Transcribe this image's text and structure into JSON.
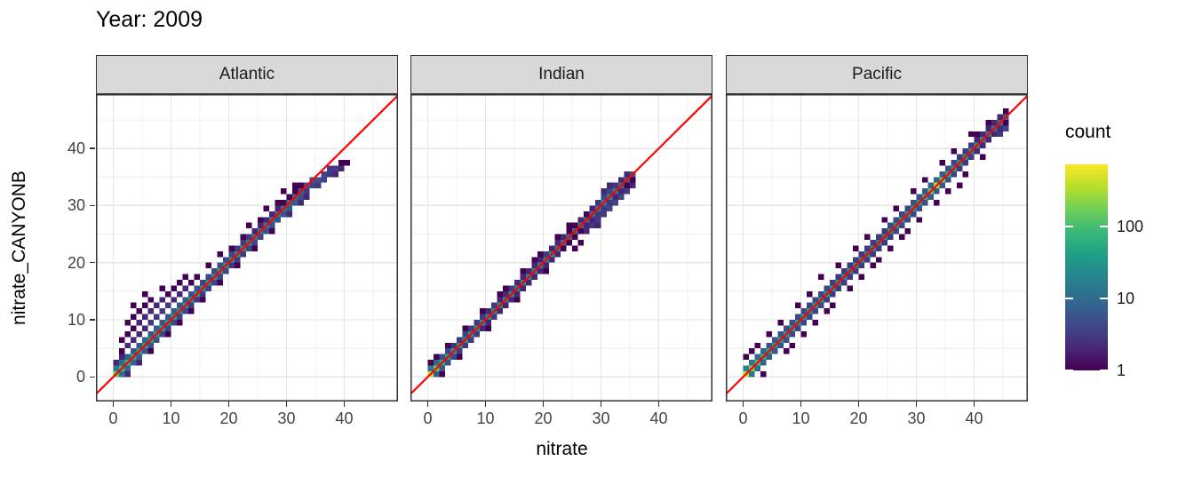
{
  "title": "Year: 2009",
  "axis_x_label": "nitrate",
  "axis_y_label": "nitrate_CANYONB",
  "legend": {
    "title": "count",
    "tick_values": [
      1,
      10,
      100
    ],
    "max_count": 730
  },
  "colors": {
    "viridis": [
      "#440154",
      "#482878",
      "#3e4a89",
      "#31688e",
      "#26828e",
      "#1f9e89",
      "#35b779",
      "#6ece58",
      "#b5de2b",
      "#fde725"
    ],
    "identity_line": "#ff0000",
    "strip_bg": "#d9d9d9",
    "panel_border": "#333333",
    "panel_bg": "#ffffff",
    "grid_major": "#e6e6e6",
    "grid_minor": "#f1f1f1",
    "tick_label": "#444444"
  },
  "chart_data": {
    "type": "heatmap",
    "geom": "bin2d",
    "binwidth": 1,
    "title": "Year: 2009",
    "xlabel": "nitrate",
    "ylabel": "nitrate_CANYONB",
    "legend_title": "count",
    "legend_scale": "log10",
    "x": {
      "min": -3,
      "max": 49.3,
      "ticks": [
        0,
        10,
        20,
        30,
        40
      ],
      "minor": [
        5,
        15,
        25,
        35,
        45
      ]
    },
    "y": {
      "min": -4.3,
      "max": 49.5,
      "ticks": [
        0,
        10,
        20,
        30,
        40
      ],
      "minor": [
        5,
        15,
        25,
        35,
        45
      ]
    },
    "identity_line": true,
    "facets": [
      {
        "label": "Atlantic",
        "diag": [
          150,
          80,
          60,
          50,
          45,
          42,
          40,
          40,
          38,
          36,
          35,
          34,
          32,
          32,
          30,
          30,
          32,
          32,
          34,
          32,
          30,
          28,
          25,
          22,
          20,
          20,
          18,
          16,
          14,
          12,
          12,
          10,
          8,
          6,
          5
        ],
        "above": [
          15,
          10,
          8,
          6,
          6,
          8,
          6,
          7,
          6,
          6,
          7,
          6,
          6,
          5,
          5,
          4,
          4,
          5,
          5,
          4,
          4,
          3,
          3,
          3,
          2,
          2,
          2,
          2,
          2,
          1,
          1,
          1,
          1,
          0,
          0
        ],
        "below": [
          0,
          12,
          9,
          8,
          7,
          6,
          5,
          5,
          4,
          4,
          4,
          4,
          4,
          3,
          3,
          3,
          4,
          4,
          4,
          4,
          3,
          3,
          3,
          4,
          4,
          4,
          5,
          5,
          5,
          6,
          6,
          6,
          5,
          5,
          4
        ],
        "extras": [
          [
            0,
            2,
            2
          ],
          [
            1,
            3,
            2
          ],
          [
            1,
            4,
            1
          ],
          [
            2,
            5,
            2
          ],
          [
            1,
            6,
            1
          ],
          [
            3,
            6,
            2
          ],
          [
            2,
            7,
            1
          ],
          [
            4,
            7,
            2
          ],
          [
            3,
            8,
            1
          ],
          [
            5,
            8,
            2
          ],
          [
            2,
            9,
            1
          ],
          [
            4,
            9,
            2
          ],
          [
            6,
            9,
            3
          ],
          [
            3,
            10,
            1
          ],
          [
            5,
            10,
            2
          ],
          [
            7,
            10,
            3
          ],
          [
            4,
            11,
            1
          ],
          [
            6,
            11,
            2
          ],
          [
            8,
            11,
            3
          ],
          [
            5,
            12,
            1
          ],
          [
            7,
            12,
            2
          ],
          [
            9,
            12,
            3
          ],
          [
            3,
            12,
            1
          ],
          [
            6,
            13,
            1
          ],
          [
            8,
            13,
            2
          ],
          [
            10,
            13,
            2
          ],
          [
            9,
            14,
            1
          ],
          [
            11,
            14,
            2
          ],
          [
            5,
            14,
            1
          ],
          [
            10,
            15,
            1
          ],
          [
            12,
            15,
            2
          ],
          [
            8,
            15,
            1
          ],
          [
            11,
            16,
            1
          ],
          [
            13,
            16,
            1
          ],
          [
            12,
            17,
            1
          ],
          [
            14,
            17,
            1
          ],
          [
            16,
            19,
            1
          ],
          [
            18,
            21,
            1
          ],
          [
            20,
            22,
            1
          ],
          [
            22,
            24,
            1
          ],
          [
            23,
            26,
            1
          ],
          [
            25,
            27,
            1
          ],
          [
            26,
            29,
            1
          ],
          [
            28,
            30,
            1
          ],
          [
            29,
            32,
            1
          ],
          [
            31,
            33,
            1
          ],
          [
            2,
            0,
            2
          ],
          [
            4,
            2,
            2
          ],
          [
            6,
            4,
            1
          ],
          [
            9,
            7,
            1
          ],
          [
            11,
            9,
            1
          ],
          [
            13,
            11,
            1
          ],
          [
            15,
            13,
            1
          ],
          [
            18,
            16,
            1
          ],
          [
            21,
            19,
            1
          ],
          [
            24,
            22,
            1
          ],
          [
            27,
            25,
            1
          ],
          [
            30,
            28,
            2
          ],
          [
            32,
            30,
            2
          ],
          [
            33,
            31,
            2
          ],
          [
            33,
            32,
            3
          ],
          [
            34,
            33,
            4
          ],
          [
            35,
            33,
            3
          ],
          [
            35,
            34,
            5
          ],
          [
            36,
            34,
            4
          ],
          [
            36,
            35,
            4
          ],
          [
            37,
            35,
            3
          ],
          [
            37,
            36,
            3
          ],
          [
            38,
            35,
            2
          ],
          [
            38,
            36,
            3
          ],
          [
            39,
            36,
            2
          ],
          [
            39,
            37,
            1
          ],
          [
            40,
            37,
            1
          ]
        ]
      },
      {
        "label": "Indian",
        "diag": [
          400,
          150,
          60,
          40,
          35,
          32,
          30,
          28,
          28,
          26,
          25,
          25,
          24,
          22,
          22,
          20,
          20,
          20,
          18,
          18,
          20,
          20,
          18,
          16,
          14,
          12,
          12,
          12,
          14,
          16,
          20,
          22,
          18,
          12,
          8,
          5
        ],
        "above": [
          12,
          8,
          5,
          4,
          3,
          3,
          4,
          3,
          3,
          3,
          2,
          3,
          2,
          2,
          3,
          2,
          2,
          2,
          2,
          2,
          3,
          2,
          2,
          2,
          1,
          1,
          2,
          1,
          2,
          3,
          4,
          4,
          3,
          2,
          2,
          0
        ],
        "below": [
          0,
          8,
          6,
          5,
          4,
          3,
          3,
          3,
          3,
          2,
          2,
          3,
          2,
          2,
          2,
          2,
          2,
          2,
          2,
          2,
          2,
          2,
          2,
          1,
          1,
          1,
          1,
          2,
          2,
          3,
          3,
          3,
          2,
          2,
          1,
          1
        ],
        "extras": [
          [
            1,
            3,
            1
          ],
          [
            3,
            5,
            1
          ],
          [
            2,
            0,
            1
          ],
          [
            0,
            2,
            1
          ],
          [
            6,
            8,
            1
          ],
          [
            9,
            11,
            1
          ],
          [
            12,
            14,
            1
          ],
          [
            13,
            15,
            1
          ],
          [
            16,
            18,
            1
          ],
          [
            18,
            20,
            1
          ],
          [
            19,
            21,
            1
          ],
          [
            22,
            24,
            1
          ],
          [
            24,
            26,
            1
          ],
          [
            26,
            23,
            1
          ],
          [
            27,
            25,
            2
          ],
          [
            28,
            26,
            3
          ],
          [
            29,
            26,
            2
          ],
          [
            25,
            22,
            1
          ],
          [
            29,
            27,
            3
          ],
          [
            30,
            28,
            3
          ],
          [
            31,
            29,
            4
          ],
          [
            32,
            30,
            4
          ],
          [
            33,
            31,
            4
          ],
          [
            34,
            32,
            3
          ],
          [
            35,
            33,
            2
          ],
          [
            33,
            34,
            2
          ],
          [
            34,
            35,
            2
          ],
          [
            30,
            32,
            2
          ],
          [
            31,
            33,
            2
          ],
          [
            20,
            18,
            1
          ],
          [
            15,
            13,
            1
          ],
          [
            10,
            8,
            1
          ],
          [
            5,
            3,
            1
          ]
        ]
      },
      {
        "label": "Pacific",
        "diag": [
          400,
          200,
          100,
          60,
          50,
          45,
          42,
          40,
          38,
          36,
          35,
          34,
          32,
          32,
          30,
          30,
          28,
          28,
          26,
          26,
          25,
          24,
          24,
          25,
          26,
          28,
          30,
          30,
          32,
          34,
          38,
          60,
          150,
          350,
          150,
          60,
          40,
          32,
          28,
          25,
          22,
          20,
          18,
          15,
          12,
          8
        ],
        "above": [
          20,
          14,
          10,
          8,
          6,
          6,
          5,
          5,
          5,
          4,
          4,
          4,
          4,
          4,
          4,
          3,
          3,
          3,
          3,
          3,
          3,
          3,
          3,
          3,
          3,
          4,
          4,
          4,
          4,
          5,
          5,
          6,
          8,
          8,
          6,
          5,
          4,
          3,
          3,
          3,
          2,
          2,
          2,
          2,
          2,
          1
        ],
        "below": [
          0,
          15,
          10,
          8,
          7,
          6,
          5,
          5,
          4,
          4,
          4,
          4,
          4,
          4,
          3,
          3,
          3,
          3,
          3,
          3,
          3,
          3,
          3,
          3,
          3,
          3,
          4,
          4,
          4,
          4,
          5,
          5,
          6,
          6,
          6,
          5,
          4,
          3,
          3,
          3,
          2,
          2,
          2,
          2,
          2,
          1
        ],
        "extras": [
          [
            2,
            5,
            1
          ],
          [
            4,
            7,
            1
          ],
          [
            6,
            9,
            1
          ],
          [
            9,
            12,
            1
          ],
          [
            11,
            14,
            1
          ],
          [
            13,
            17,
            1
          ],
          [
            16,
            19,
            1
          ],
          [
            19,
            22,
            1
          ],
          [
            21,
            24,
            1
          ],
          [
            24,
            27,
            1
          ],
          [
            26,
            29,
            1
          ],
          [
            29,
            32,
            1
          ],
          [
            31,
            34,
            1
          ],
          [
            34,
            37,
            1
          ],
          [
            36,
            39,
            1
          ],
          [
            39,
            42,
            1
          ],
          [
            3,
            0,
            1
          ],
          [
            7,
            4,
            1
          ],
          [
            10,
            7,
            1
          ],
          [
            12,
            9,
            1
          ],
          [
            15,
            12,
            1
          ],
          [
            18,
            15,
            1
          ],
          [
            20,
            17,
            1
          ],
          [
            23,
            20,
            1
          ],
          [
            25,
            22,
            1
          ],
          [
            28,
            25,
            1
          ],
          [
            30,
            27,
            1
          ],
          [
            33,
            30,
            1
          ],
          [
            35,
            32,
            1
          ],
          [
            38,
            35,
            1
          ],
          [
            41,
            38,
            1
          ],
          [
            27,
            24,
            1
          ],
          [
            37,
            33,
            1
          ],
          [
            22,
            19,
            1
          ],
          [
            0,
            3,
            1
          ],
          [
            1,
            4,
            1
          ],
          [
            44,
            42,
            3
          ],
          [
            45,
            43,
            4
          ],
          [
            44,
            45,
            2
          ],
          [
            42,
            44,
            1
          ],
          [
            40,
            42,
            1
          ],
          [
            8,
            5,
            1
          ],
          [
            14,
            11,
            1
          ]
        ]
      }
    ]
  }
}
